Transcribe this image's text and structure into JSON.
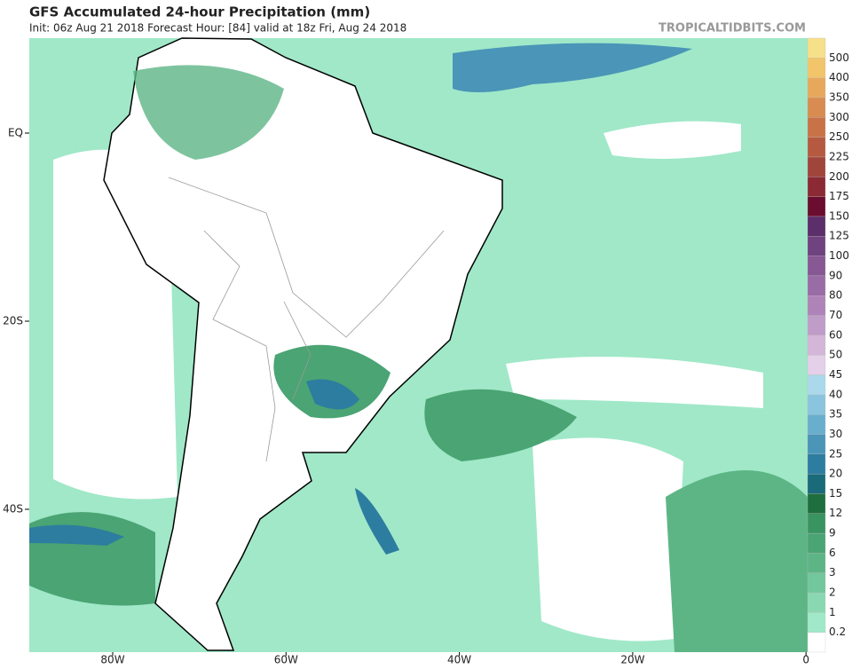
{
  "header": {
    "title": "GFS Accumulated 24-hour Precipitation (mm)",
    "subtitle": "Init: 06z Aug 21 2018   Forecast Hour: [84]   valid at 18z Fri, Aug 24 2018",
    "source": "TROPICALTIDBITS.COM"
  },
  "map": {
    "lat_labels": [
      "EQ",
      "20S",
      "40S"
    ],
    "lon_labels": [
      "80W",
      "60W",
      "40W",
      "20W",
      "0"
    ]
  },
  "colorbar": {
    "levels": [
      0.2,
      1,
      2,
      3,
      6,
      9,
      12,
      15,
      20,
      25,
      30,
      35,
      40,
      45,
      50,
      60,
      70,
      80,
      90,
      100,
      125,
      150,
      175,
      200,
      225,
      250,
      300,
      350,
      400,
      500
    ],
    "colors": [
      "#ffffff",
      "#a0e8c8",
      "#8ad8b2",
      "#72c79c",
      "#5db586",
      "#4aa473",
      "#3a9462",
      "#1f6e3f",
      "#1a6a7a",
      "#2d7da0",
      "#4a95b8",
      "#6aaece",
      "#8ac4de",
      "#acd8ec",
      "#e4d0e8",
      "#d3b6d8",
      "#c09cc8",
      "#ae84b8",
      "#9a6ca6",
      "#875894",
      "#704380",
      "#5c2e6a",
      "#6a0d2e",
      "#8b2a34",
      "#a0453c",
      "#b55a40",
      "#c87248",
      "#d98c52",
      "#e8a85c",
      "#f2c56a",
      "#f7e08a"
    ]
  }
}
